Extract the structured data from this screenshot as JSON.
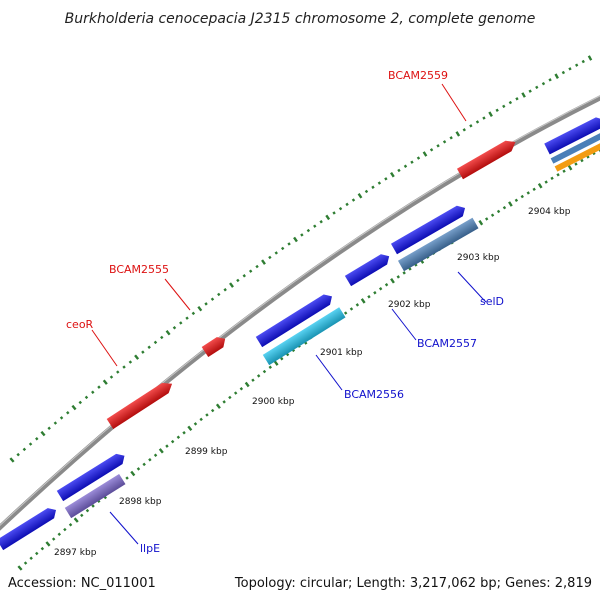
{
  "title": "Burkholderia cenocepacia J2315 chromosome 2, complete genome",
  "footer": {
    "accession": "Accession: NC_011001",
    "summary": "Topology: circular; Length: 3,217,062 bp; Genes: 2,819"
  },
  "colors": {
    "backbone": "#8a8a8a",
    "tick": "#2e7d32",
    "outer_gene": "#ee1111",
    "inner_gene": "#1111ee",
    "inner_alt1": "#22c4ee",
    "inner_alt2": "#4a7fb8",
    "inner_alt3": "#7a66cc",
    "inner_alt4": "#f39c12",
    "outer_label": "#dd1111",
    "inner_label": "#1111cc"
  },
  "kbp_labels": [
    "2897 kbp",
    "2898 kbp",
    "2899 kbp",
    "2900 kbp",
    "2901 kbp",
    "2902 kbp",
    "2903 kbp",
    "2904 kbp"
  ],
  "gene_labels": {
    "outer": [
      "BCAM2559",
      "BCAM2555",
      "ceoR"
    ],
    "inner": [
      "selD",
      "BCAM2557",
      "BCAM2556",
      "llpE"
    ]
  }
}
